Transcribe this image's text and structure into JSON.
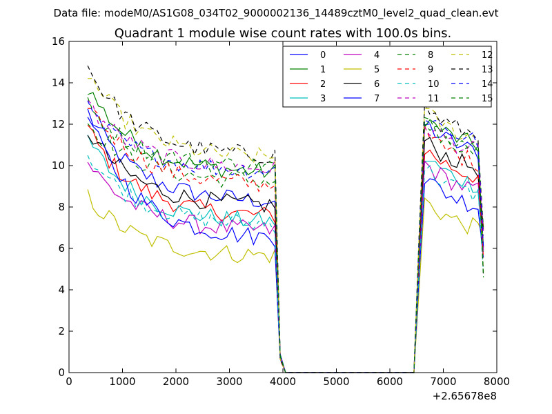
{
  "header": {
    "data_file": "Data file: modeM0/AS1G08_034T02_9000002136_14489cztM0_level2_quad_clean.evt"
  },
  "chart_data": {
    "type": "line",
    "title": "Quadrant 1 module wise count rates with 100.0s bins.",
    "xlabel": "",
    "ylabel": "",
    "x_offset_label": "+2.65678e8",
    "xlim": [
      0,
      8000
    ],
    "ylim": [
      0,
      16
    ],
    "x_ticks": [
      "0",
      "1000",
      "2000",
      "3000",
      "4000",
      "5000",
      "6000",
      "7000",
      "8000"
    ],
    "y_ticks": [
      "0",
      "2",
      "4",
      "6",
      "8",
      "10",
      "12",
      "14",
      "16"
    ],
    "grid": false,
    "legend_position": "top-right",
    "series": [
      {
        "name": "0",
        "color": "#0000ff",
        "dash": "solid",
        "start": 12.6,
        "level": 8.2,
        "post": 10.6
      },
      {
        "name": "1",
        "color": "#008000",
        "dash": "solid",
        "start": 13.8,
        "level": 9.6,
        "post": 10.9
      },
      {
        "name": "2",
        "color": "#ff0000",
        "dash": "solid",
        "start": 11.8,
        "level": 7.5,
        "post": 9.4
      },
      {
        "name": "3",
        "color": "#00bfbf",
        "dash": "solid",
        "start": 11.3,
        "level": 7.2,
        "post": 9.0
      },
      {
        "name": "4",
        "color": "#bf00bf",
        "dash": "solid",
        "start": 10.2,
        "level": 6.8,
        "post": 8.7
      },
      {
        "name": "5",
        "color": "#bfbf00",
        "dash": "solid",
        "start": 8.5,
        "level": 5.6,
        "post": 6.9
      },
      {
        "name": "6",
        "color": "#000000",
        "dash": "solid",
        "start": 11.7,
        "level": 8.0,
        "post": 9.8
      },
      {
        "name": "7",
        "color": "#0000ff",
        "dash": "solid",
        "start": 12.4,
        "level": 6.4,
        "post": 8.0
      },
      {
        "name": "8",
        "color": "#008000",
        "dash": "dashed",
        "start": 12.1,
        "level": 9.2,
        "post": 10.6
      },
      {
        "name": "9",
        "color": "#ff0000",
        "dash": "dashed",
        "start": 13.1,
        "level": 9.0,
        "post": 10.1
      },
      {
        "name": "10",
        "color": "#00bfbf",
        "dash": "dashed",
        "start": 10.6,
        "level": 7.1,
        "post": 8.5
      },
      {
        "name": "11",
        "color": "#bf00bf",
        "dash": "dashed",
        "start": 13.0,
        "level": 9.8,
        "post": 10.6
      },
      {
        "name": "12",
        "color": "#bfbf00",
        "dash": "dashed",
        "start": 14.5,
        "level": 10.3,
        "post": 11.2
      },
      {
        "name": "13",
        "color": "#000000",
        "dash": "dashed",
        "start": 14.8,
        "level": 10.4,
        "post": 11.4
      },
      {
        "name": "14",
        "color": "#0000ff",
        "dash": "dashed",
        "start": 12.7,
        "level": 9.7,
        "post": 11.1
      },
      {
        "name": "15",
        "color": "#008000",
        "dash": "dashed",
        "start": 12.9,
        "level": 9.9,
        "post": 10.7
      }
    ]
  }
}
